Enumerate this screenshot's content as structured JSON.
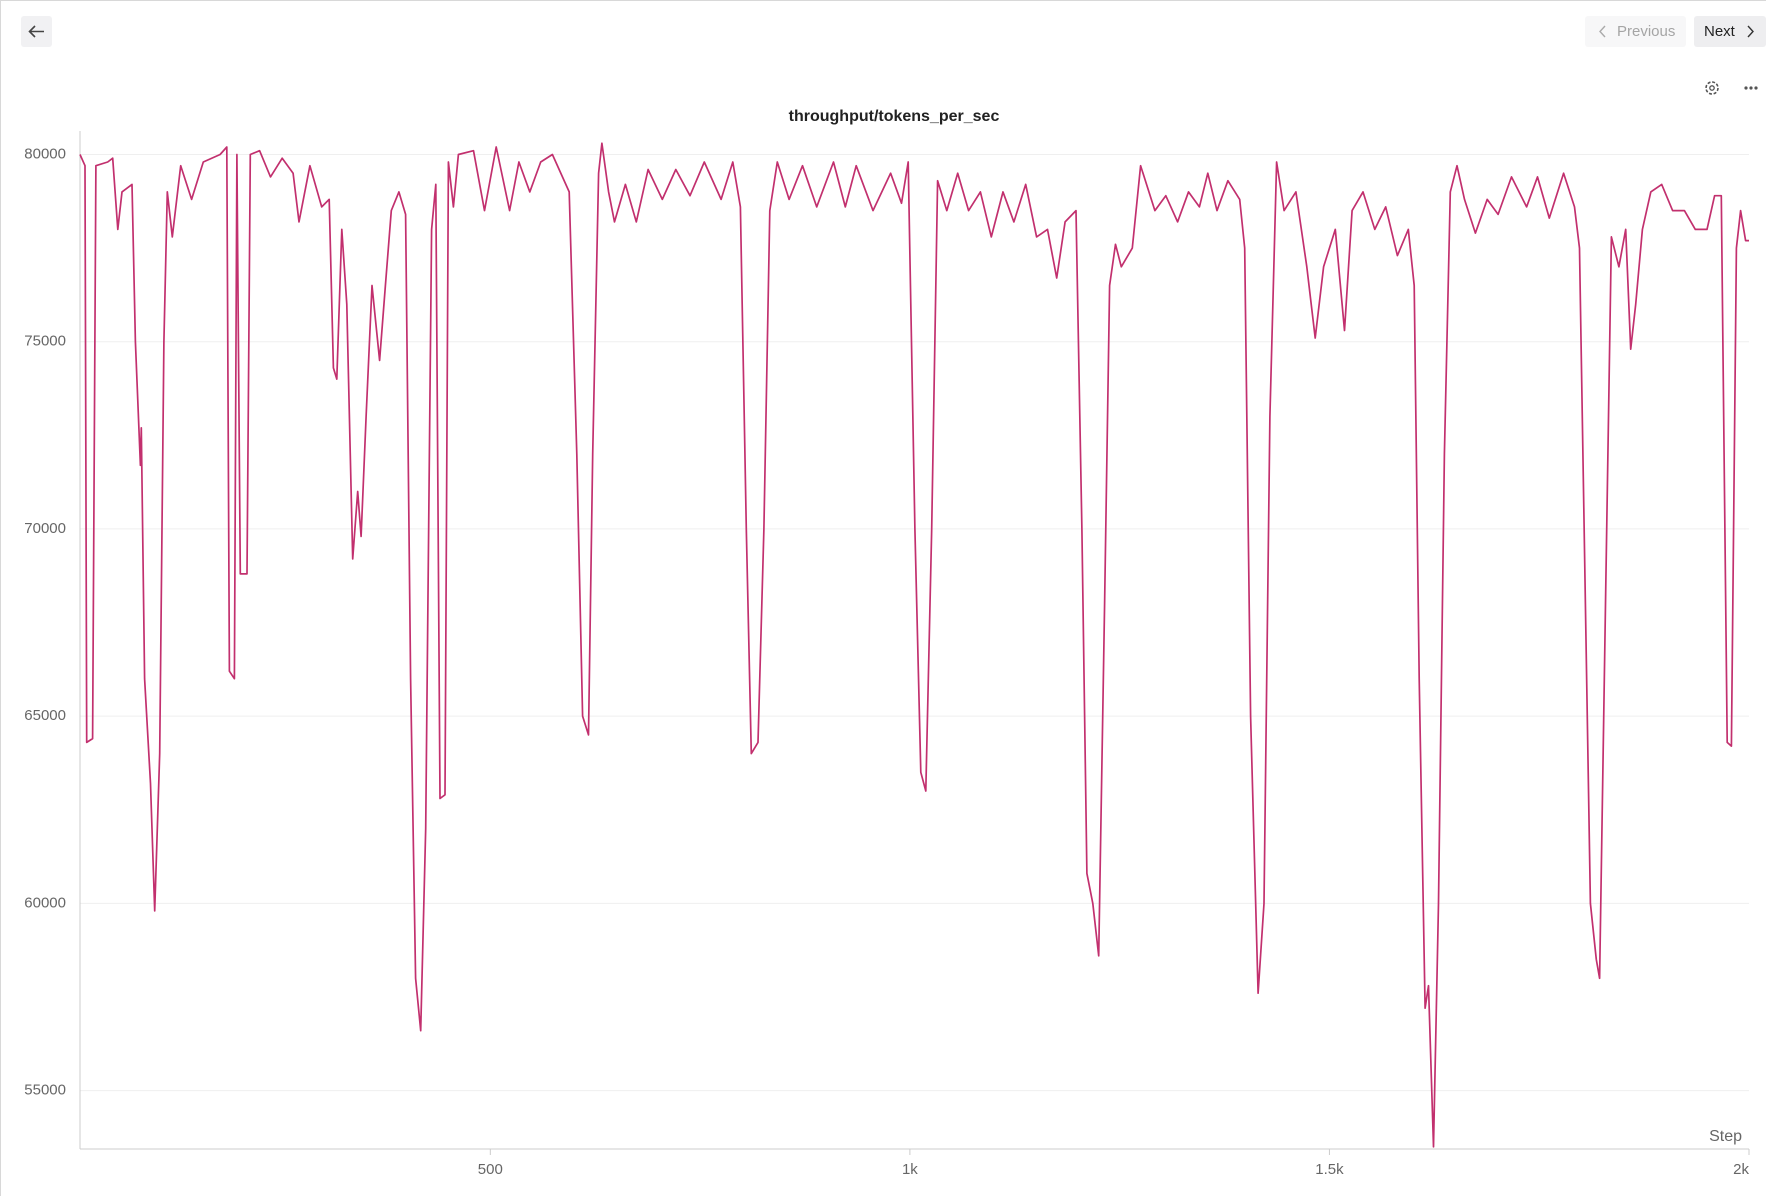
{
  "ui": {
    "previous": "Previous",
    "next": "Next"
  },
  "chart_data": {
    "type": "line",
    "title": "throughput/tokens_per_sec",
    "x_label": "Step",
    "x": [
      11,
      17,
      19,
      26,
      30,
      44,
      50,
      56,
      61,
      73,
      77,
      83,
      84,
      88,
      95,
      100,
      106,
      111,
      115,
      121,
      131,
      144,
      158,
      178,
      186,
      189,
      195,
      198,
      202,
      210,
      214,
      225,
      238,
      252,
      265,
      272,
      285,
      299,
      308,
      313,
      317,
      323,
      329,
      336,
      342,
      346,
      352,
      359,
      368,
      375,
      382,
      391,
      399,
      405,
      411,
      417,
      423,
      430,
      435,
      440,
      446,
      450,
      456,
      462,
      480,
      493,
      507,
      523,
      534,
      547,
      560,
      574,
      594,
      603,
      610,
      617,
      622,
      629,
      633,
      641,
      648,
      661,
      674,
      688,
      705,
      721,
      738,
      755,
      775,
      789,
      798,
      805,
      811,
      819,
      826,
      833,
      842,
      856,
      872,
      889,
      909,
      923,
      936,
      956,
      977,
      990,
      998,
      1006,
      1013,
      1019,
      1026,
      1033,
      1044,
      1057,
      1070,
      1084,
      1097,
      1111,
      1124,
      1138,
      1151,
      1164,
      1175,
      1185,
      1198,
      1205,
      1211,
      1218,
      1225,
      1232,
      1238,
      1245,
      1252,
      1265,
      1275,
      1292,
      1305,
      1319,
      1332,
      1345,
      1355,
      1366,
      1379,
      1393,
      1399,
      1406,
      1415,
      1422,
      1429,
      1437,
      1446,
      1460,
      1473,
      1483,
      1493,
      1507,
      1518,
      1527,
      1540,
      1554,
      1567,
      1581,
      1594,
      1601,
      1607,
      1614,
      1618,
      1624,
      1630,
      1637,
      1644,
      1652,
      1661,
      1674,
      1688,
      1701,
      1717,
      1735,
      1748,
      1762,
      1779,
      1792,
      1798,
      1805,
      1811,
      1818,
      1822,
      1829,
      1836,
      1845,
      1853,
      1859,
      1865,
      1873,
      1883,
      1896,
      1909,
      1923,
      1936,
      1950,
      1959,
      1967,
      1974,
      1979,
      1985,
      1990,
      1996,
      2000
    ],
    "series": [
      {
        "name": "tokens_per_sec",
        "color": "#c2306e",
        "values": [
          80000,
          79700,
          64300,
          64400,
          79700,
          79800,
          79900,
          78000,
          79000,
          79200,
          75000,
          71700,
          72700,
          66000,
          63200,
          59800,
          64000,
          75000,
          79000,
          77800,
          79700,
          78800,
          79800,
          80000,
          80200,
          66200,
          66000,
          80000,
          68800,
          68800,
          80000,
          80100,
          79400,
          79900,
          79500,
          78200,
          79700,
          78600,
          78800,
          74300,
          74000,
          78000,
          76000,
          69200,
          71000,
          69800,
          73000,
          76500,
          74500,
          76500,
          78500,
          79000,
          78400,
          66000,
          58000,
          56600,
          62000,
          78000,
          79200,
          62800,
          62900,
          79800,
          78600,
          80000,
          80100,
          78500,
          80200,
          78500,
          79800,
          79000,
          79800,
          80000,
          79000,
          72000,
          65000,
          64500,
          72000,
          79500,
          80300,
          79000,
          78200,
          79200,
          78200,
          79600,
          78800,
          79600,
          78900,
          79800,
          78800,
          79800,
          78600,
          70000,
          64000,
          64300,
          70000,
          78500,
          79800,
          78800,
          79700,
          78600,
          79800,
          78600,
          79700,
          78500,
          79500,
          78700,
          79800,
          70000,
          63500,
          63000,
          70000,
          79300,
          78500,
          79500,
          78500,
          79000,
          77800,
          79000,
          78200,
          79200,
          77800,
          78000,
          76700,
          78200,
          78500,
          70000,
          60800,
          60000,
          58600,
          68000,
          76500,
          77600,
          77000,
          77500,
          79700,
          78500,
          78900,
          78200,
          79000,
          78600,
          79500,
          78500,
          79300,
          78800,
          77500,
          65000,
          57600,
          60000,
          73000,
          79800,
          78500,
          79000,
          77000,
          75100,
          77000,
          78000,
          75300,
          78500,
          79000,
          78000,
          78600,
          77300,
          78000,
          76500,
          66000,
          57200,
          57800,
          53500,
          60000,
          72000,
          79000,
          79700,
          78800,
          77900,
          78800,
          78400,
          79400,
          78600,
          79400,
          78300,
          79500,
          78600,
          77500,
          68000,
          60000,
          58500,
          58000,
          68000,
          77800,
          77000,
          78000,
          74800,
          76000,
          78000,
          79000,
          79200,
          78500,
          78500,
          78000,
          78000,
          78900,
          78900,
          64300,
          64200,
          77500,
          78500,
          77700,
          77700
        ]
      }
    ],
    "xlim": [
      11,
      2000
    ],
    "ylim": [
      53440,
      80360
    ],
    "xticks": [
      500,
      {
        "value": 1000,
        "label": "1k"
      },
      {
        "value": 1500,
        "label": "1.5k"
      },
      {
        "value": 2000,
        "label": "2k"
      }
    ],
    "yticks": [
      55000,
      60000,
      65000,
      70000,
      75000,
      80000
    ],
    "grid": true
  }
}
